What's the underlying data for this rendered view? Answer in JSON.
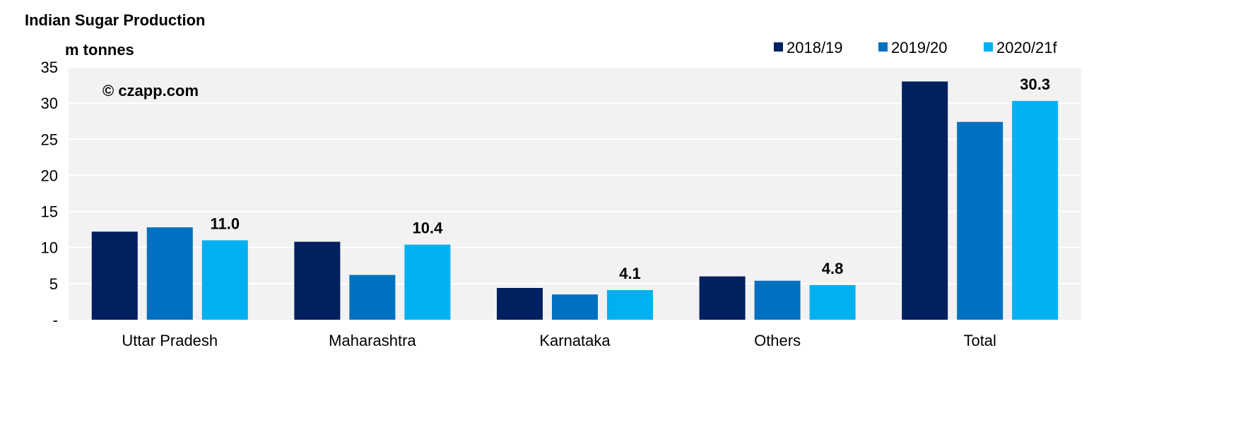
{
  "chart_data": {
    "type": "bar",
    "title": "Indian Sugar Production",
    "ylabel": "m tonnes",
    "xlabel": "",
    "watermark": "© czapp.com",
    "categories": [
      "Uttar Pradesh",
      "Maharashtra",
      "Karnataka",
      "Others",
      "Total"
    ],
    "series": [
      {
        "name": "2018/19",
        "color": "#002060",
        "values": [
          12.2,
          10.8,
          4.4,
          6.0,
          33.0
        ]
      },
      {
        "name": "2019/20",
        "color": "#0070C0",
        "values": [
          12.8,
          6.2,
          3.5,
          5.4,
          27.4
        ]
      },
      {
        "name": "2020/21f",
        "color": "#00B0F0",
        "values": [
          11.0,
          10.4,
          4.1,
          4.8,
          30.3
        ],
        "labels": [
          "11.0",
          "10.4",
          "4.1",
          "4.8",
          "30.3"
        ]
      }
    ],
    "ylim": [
      0,
      35
    ],
    "yticks": [
      0,
      5,
      10,
      15,
      20,
      25,
      30,
      35
    ],
    "ytick_labels": [
      "-",
      "5",
      "10",
      "15",
      "20",
      "25",
      "30",
      "35"
    ],
    "grid": true,
    "legend": "top-right",
    "plot_background": "#F2F2F2"
  }
}
